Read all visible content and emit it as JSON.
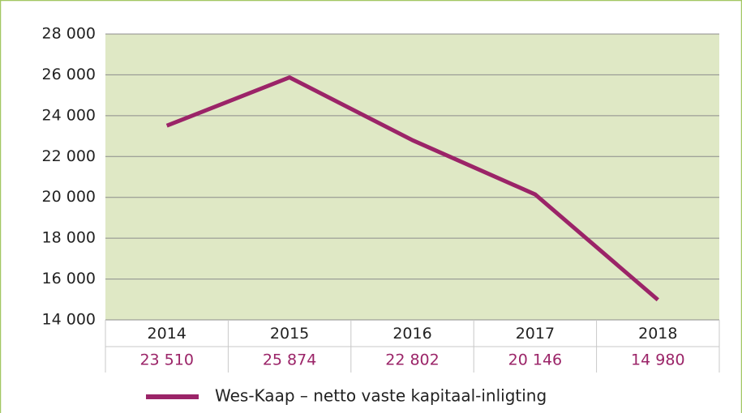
{
  "chart_data": {
    "type": "line",
    "categories": [
      "2014",
      "2015",
      "2016",
      "2017",
      "2018"
    ],
    "series": [
      {
        "name": "Wes-Kaap – netto vaste kapitaal-inligting",
        "color": "#9b2468",
        "values": [
          23510,
          25874,
          22802,
          20146,
          14980
        ],
        "value_labels": [
          "23 510",
          "25 874",
          "22 802",
          "20 146",
          "14 980"
        ]
      }
    ],
    "ylim": [
      14000,
      28000
    ],
    "yticks": [
      {
        "value": 14000,
        "label": "14 000"
      },
      {
        "value": 16000,
        "label": "16 000"
      },
      {
        "value": 18000,
        "label": "18 000"
      },
      {
        "value": 20000,
        "label": "20 000"
      },
      {
        "value": 22000,
        "label": "22 000"
      },
      {
        "value": 24000,
        "label": "24 000"
      },
      {
        "value": 26000,
        "label": "26 000"
      },
      {
        "value": 28000,
        "label": "28 000"
      }
    ],
    "grid": true,
    "legend": "bottom",
    "plot_background": "#dfe8c5"
  }
}
